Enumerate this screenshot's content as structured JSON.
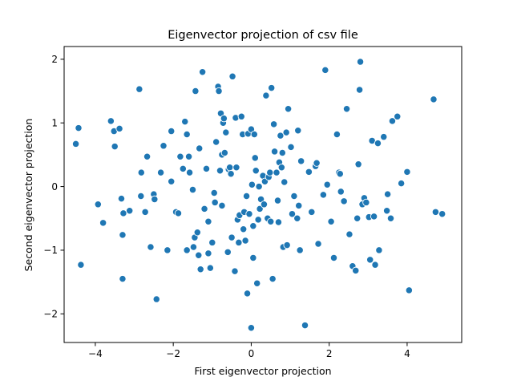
{
  "chart_data": {
    "type": "scatter",
    "title": "Eigenvector projection of csv file",
    "xlabel": "First eigenvector projection",
    "ylabel": "Second eigenvector projection",
    "xlim": [
      -4.8,
      5.4
    ],
    "ylim": [
      -2.45,
      2.2
    ],
    "xticks": [
      -4,
      -2,
      0,
      2,
      4
    ],
    "yticks": [
      -2,
      -1,
      0,
      1,
      2
    ],
    "xtick_labels": [
      "−4",
      "−2",
      "0",
      "2",
      "4"
    ],
    "ytick_labels": [
      "−2",
      "−1",
      "0",
      "1",
      "2"
    ],
    "grid": false,
    "marker_color": "#1f77b4",
    "points": [
      [
        -4.5,
        0.67
      ],
      [
        -4.43,
        0.92
      ],
      [
        -4.37,
        -1.23
      ],
      [
        -3.93,
        -0.28
      ],
      [
        -3.8,
        -0.57
      ],
      [
        -3.6,
        1.03
      ],
      [
        -3.52,
        0.87
      ],
      [
        -3.5,
        0.63
      ],
      [
        -3.38,
        0.91
      ],
      [
        -3.33,
        -0.19
      ],
      [
        -3.3,
        -0.76
      ],
      [
        -3.3,
        -1.45
      ],
      [
        -3.28,
        -0.42
      ],
      [
        -3.12,
        -0.38
      ],
      [
        -2.87,
        1.53
      ],
      [
        -2.83,
        -0.15
      ],
      [
        -2.82,
        0.22
      ],
      [
        -2.72,
        -0.4
      ],
      [
        -2.67,
        0.47
      ],
      [
        -2.58,
        -0.95
      ],
      [
        -2.5,
        -0.12
      ],
      [
        -2.48,
        -0.2
      ],
      [
        -2.43,
        -1.77
      ],
      [
        -2.32,
        0.22
      ],
      [
        -2.25,
        0.64
      ],
      [
        -2.15,
        -1.0
      ],
      [
        -2.05,
        0.08
      ],
      [
        -2.05,
        0.87
      ],
      [
        -1.93,
        -0.4
      ],
      [
        -1.87,
        -0.42
      ],
      [
        -1.82,
        0.47
      ],
      [
        -1.75,
        0.28
      ],
      [
        -1.7,
        1.02
      ],
      [
        -1.65,
        -1.0
      ],
      [
        -1.65,
        0.82
      ],
      [
        -1.6,
        0.47
      ],
      [
        -1.58,
        0.22
      ],
      [
        -1.5,
        -0.05
      ],
      [
        -1.48,
        -0.95
      ],
      [
        -1.45,
        -0.8
      ],
      [
        -1.43,
        1.5
      ],
      [
        -1.38,
        -0.72
      ],
      [
        -1.35,
        -1.08
      ],
      [
        -1.33,
        0.6
      ],
      [
        -1.3,
        -1.3
      ],
      [
        -1.25,
        1.8
      ],
      [
        -1.2,
        -0.35
      ],
      [
        -1.15,
        0.28
      ],
      [
        -1.1,
        -0.55
      ],
      [
        -1.1,
        -1.05
      ],
      [
        -1.05,
        -1.28
      ],
      [
        -1.0,
        -0.88
      ],
      [
        -0.95,
        -0.1
      ],
      [
        -0.93,
        -0.25
      ],
      [
        -0.9,
        0.7
      ],
      [
        -0.85,
        1.57
      ],
      [
        -0.83,
        1.5
      ],
      [
        -0.8,
        0.25
      ],
      [
        -0.78,
        1.15
      ],
      [
        -0.75,
        -0.3
      ],
      [
        -0.75,
        0.5
      ],
      [
        -0.72,
        1.0
      ],
      [
        -0.7,
        1.07
      ],
      [
        -0.68,
        0.53
      ],
      [
        -0.65,
        0.85
      ],
      [
        -0.6,
        -1.03
      ],
      [
        -0.58,
        0.27
      ],
      [
        -0.55,
        0.3
      ],
      [
        -0.52,
        0.2
      ],
      [
        -0.5,
        -0.8
      ],
      [
        -0.48,
        1.73
      ],
      [
        -0.42,
        -1.33
      ],
      [
        -0.4,
        1.08
      ],
      [
        -0.38,
        0.3
      ],
      [
        -0.35,
        -0.52
      ],
      [
        -0.32,
        -0.88
      ],
      [
        -0.3,
        -0.45
      ],
      [
        -0.25,
        1.1
      ],
      [
        -0.22,
        0.82
      ],
      [
        -0.2,
        -0.67
      ],
      [
        -0.18,
        -0.4
      ],
      [
        -0.15,
        -0.85
      ],
      [
        -0.12,
        -0.15
      ],
      [
        -0.1,
        -1.68
      ],
      [
        -0.08,
        0.83
      ],
      [
        -0.05,
        -0.43
      ],
      [
        0.0,
        0.9
      ],
      [
        0.0,
        -2.22
      ],
      [
        0.02,
        0.03
      ],
      [
        0.05,
        -0.62
      ],
      [
        0.05,
        -1.12
      ],
      [
        0.08,
        0.82
      ],
      [
        0.1,
        0.45
      ],
      [
        0.12,
        0.25
      ],
      [
        0.15,
        -1.52
      ],
      [
        0.18,
        -0.52
      ],
      [
        0.2,
        0.0
      ],
      [
        0.22,
        -0.35
      ],
      [
        0.25,
        -0.2
      ],
      [
        0.3,
        0.17
      ],
      [
        0.33,
        -0.28
      ],
      [
        0.35,
        0.08
      ],
      [
        0.38,
        1.43
      ],
      [
        0.42,
        -0.5
      ],
      [
        0.45,
        0.15
      ],
      [
        0.48,
        0.22
      ],
      [
        0.5,
        -0.55
      ],
      [
        0.52,
        1.55
      ],
      [
        0.55,
        -1.45
      ],
      [
        0.58,
        0.98
      ],
      [
        0.6,
        0.55
      ],
      [
        0.65,
        0.22
      ],
      [
        0.68,
        -0.22
      ],
      [
        0.7,
        -0.56
      ],
      [
        0.72,
        0.38
      ],
      [
        0.75,
        0.8
      ],
      [
        0.78,
        0.3
      ],
      [
        0.8,
        0.53
      ],
      [
        0.82,
        -0.95
      ],
      [
        0.85,
        0.07
      ],
      [
        0.9,
        0.85
      ],
      [
        0.92,
        -0.92
      ],
      [
        0.95,
        1.22
      ],
      [
        1.02,
        0.62
      ],
      [
        1.05,
        -0.43
      ],
      [
        1.1,
        -0.15
      ],
      [
        1.18,
        -0.5
      ],
      [
        1.2,
        0.88
      ],
      [
        1.22,
        -0.3
      ],
      [
        1.25,
        -1.0
      ],
      [
        1.28,
        0.4
      ],
      [
        1.38,
        -2.18
      ],
      [
        1.48,
        0.23
      ],
      [
        1.55,
        -0.4
      ],
      [
        1.65,
        0.32
      ],
      [
        1.68,
        0.37
      ],
      [
        1.72,
        -0.9
      ],
      [
        1.85,
        -0.13
      ],
      [
        1.9,
        1.83
      ],
      [
        1.95,
        0.03
      ],
      [
        2.05,
        -0.55
      ],
      [
        2.12,
        -1.12
      ],
      [
        2.2,
        0.82
      ],
      [
        2.25,
        0.22
      ],
      [
        2.28,
        0.2
      ],
      [
        2.3,
        -0.08
      ],
      [
        2.38,
        -0.23
      ],
      [
        2.45,
        1.22
      ],
      [
        2.52,
        -0.75
      ],
      [
        2.6,
        -1.25
      ],
      [
        2.68,
        -1.32
      ],
      [
        2.72,
        -0.5
      ],
      [
        2.75,
        0.35
      ],
      [
        2.78,
        1.52
      ],
      [
        2.8,
        1.96
      ],
      [
        2.85,
        -0.28
      ],
      [
        2.9,
        -0.18
      ],
      [
        2.95,
        -0.25
      ],
      [
        3.02,
        -0.48
      ],
      [
        3.05,
        -1.15
      ],
      [
        3.1,
        0.72
      ],
      [
        3.15,
        -0.47
      ],
      [
        3.18,
        -1.23
      ],
      [
        3.25,
        0.68
      ],
      [
        3.28,
        -1.0
      ],
      [
        3.4,
        0.78
      ],
      [
        3.48,
        -0.38
      ],
      [
        3.5,
        -0.12
      ],
      [
        3.58,
        -0.5
      ],
      [
        3.62,
        1.03
      ],
      [
        3.75,
        1.1
      ],
      [
        3.85,
        0.05
      ],
      [
        4.0,
        0.23
      ],
      [
        4.05,
        -1.63
      ],
      [
        4.68,
        1.37
      ],
      [
        4.73,
        -0.4
      ],
      [
        4.9,
        -0.43
      ]
    ]
  }
}
